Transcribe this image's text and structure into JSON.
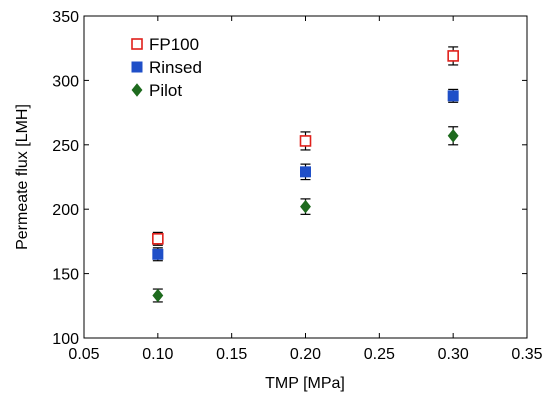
{
  "chart_data": {
    "type": "scatter",
    "title": "",
    "xlabel": "TMP [MPa]",
    "ylabel": "Permeate flux [LMH]",
    "xlim": [
      0.05,
      0.35
    ],
    "ylim": [
      100,
      350
    ],
    "xticks": [
      "0.05",
      "0.10",
      "0.15",
      "0.20",
      "0.25",
      "0.30",
      "0.35"
    ],
    "yticks": [
      "100",
      "150",
      "200",
      "250",
      "300",
      "350"
    ],
    "grid": false,
    "legend_position": "top-left",
    "series": [
      {
        "name": "FP100",
        "marker": "open-square",
        "color": "#e0201b",
        "x": [
          0.1,
          0.2,
          0.3
        ],
        "y": [
          177,
          253,
          319
        ],
        "error": [
          5,
          7,
          7
        ]
      },
      {
        "name": "Rinsed",
        "marker": "filled-square",
        "color": "#1f4fc8",
        "x": [
          0.1,
          0.2,
          0.3
        ],
        "y": [
          165,
          229,
          288
        ],
        "error": [
          5,
          6,
          5
        ]
      },
      {
        "name": "Pilot",
        "marker": "filled-diamond",
        "color": "#1e6b1e",
        "x": [
          0.1,
          0.2,
          0.3
        ],
        "y": [
          133,
          202,
          257
        ],
        "error": [
          5,
          6,
          7
        ]
      }
    ]
  }
}
